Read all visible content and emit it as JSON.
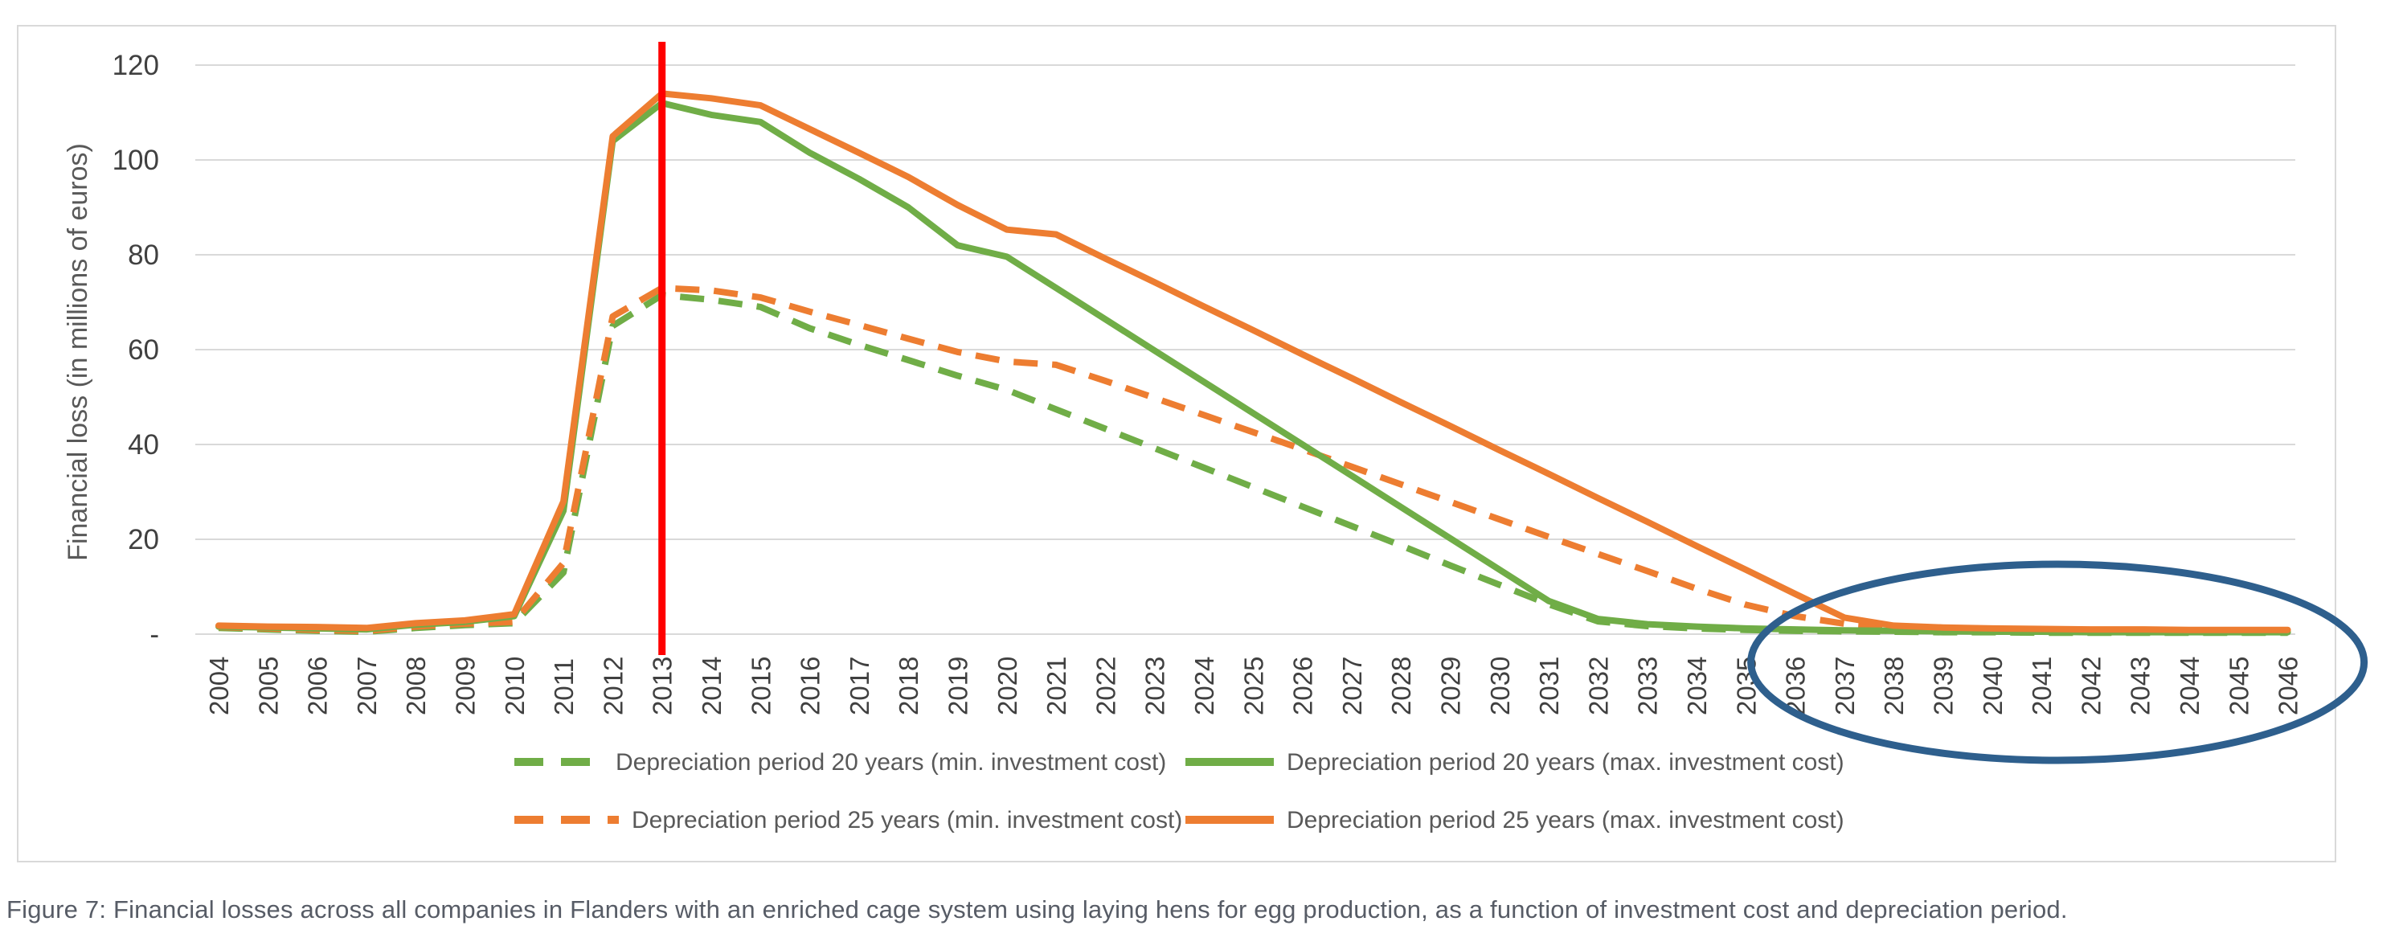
{
  "caption": "Figure 7: Financial losses across all companies in Flanders with an enriched cage system using laying hens for egg production, as a function of investment cost and depreciation period.",
  "chart_data": {
    "type": "line",
    "ylabel": "Financial loss (in millions of euros)",
    "ylim": [
      0,
      120
    ],
    "grid": true,
    "legend_position": "bottom",
    "yticks": {
      "values": [
        0,
        20,
        40,
        60,
        80,
        100,
        120
      ],
      "labels": [
        "-",
        "20",
        "40",
        "60",
        "80",
        "100",
        "120"
      ]
    },
    "x": [
      2004,
      2005,
      2006,
      2007,
      2008,
      2009,
      2010,
      2011,
      2012,
      2013,
      2014,
      2015,
      2016,
      2017,
      2018,
      2019,
      2020,
      2021,
      2022,
      2023,
      2024,
      2025,
      2026,
      2027,
      2028,
      2029,
      2030,
      2031,
      2032,
      2033,
      2034,
      2035,
      2036,
      2037,
      2038,
      2039,
      2040,
      2041,
      2042,
      2043,
      2044,
      2045,
      2046
    ],
    "series": [
      {
        "name": "Depreciation period 20 years (min. investment cost)",
        "color": "#70AD47",
        "dash": true,
        "legend_row": 0,
        "legend_col": 0,
        "values": [
          1.3,
          1.0,
          0.7,
          0.5,
          1.3,
          1.9,
          2.3,
          13,
          65,
          71.5,
          70.5,
          69,
          64.5,
          61,
          57.8,
          54.5,
          51.5,
          47.4,
          43.3,
          39.2,
          35.1,
          31,
          26.9,
          22.8,
          18.7,
          14.5,
          10.4,
          6.3,
          2.7,
          1.7,
          1.2,
          0.9,
          0.7,
          0.6,
          0.5,
          0.4,
          0.4,
          0.3,
          0.3,
          0.3,
          0.3,
          0.3,
          0.3
        ]
      },
      {
        "name": "Depreciation period 25 years (min. investment cost)",
        "color": "#ED7D31",
        "dash": true,
        "legend_row": 1,
        "legend_col": 0,
        "values": [
          1.5,
          1.2,
          0.9,
          0.7,
          1.6,
          2.2,
          2.6,
          15,
          67,
          73,
          72.5,
          71,
          68,
          65.2,
          62.3,
          59.5,
          57.5,
          56.8,
          53.4,
          49.8,
          46.2,
          42.6,
          39,
          35.3,
          31.6,
          27.9,
          24.2,
          20.5,
          16.9,
          13.3,
          9.6,
          6.2,
          3.8,
          2.2,
          1.5,
          1.2,
          1.0,
          0.9,
          0.9,
          0.8,
          0.8,
          0.8,
          0.8
        ]
      },
      {
        "name": "Depreciation period 20 years (max. investment cost)",
        "color": "#70AD47",
        "dash": false,
        "legend_row": 0,
        "legend_col": 1,
        "values": [
          1.6,
          1.4,
          1.2,
          1.0,
          2.0,
          2.6,
          3.8,
          26,
          104,
          112,
          109.5,
          108,
          101.5,
          96,
          90,
          82,
          79.6,
          73,
          66.4,
          59.8,
          53.2,
          46.6,
          40,
          33.4,
          26.8,
          20.2,
          13.6,
          7,
          3.2,
          2.1,
          1.6,
          1.2,
          1.0,
          0.8,
          0.7,
          0.6,
          0.5,
          0.5,
          0.4,
          0.4,
          0.4,
          0.4,
          0.4
        ]
      },
      {
        "name": "Depreciation period 25 years (max. investment cost)",
        "color": "#ED7D31",
        "dash": false,
        "legend_row": 1,
        "legend_col": 1,
        "values": [
          1.8,
          1.6,
          1.5,
          1.3,
          2.3,
          2.9,
          4.2,
          28,
          105,
          114,
          113,
          111.5,
          106.5,
          101.5,
          96.4,
          90.5,
          85.3,
          84.3,
          79.2,
          74.2,
          69.1,
          64.1,
          59,
          54,
          48.9,
          43.9,
          38.8,
          33.8,
          28.7,
          23.7,
          18.6,
          13.6,
          8.5,
          3.5,
          1.8,
          1.4,
          1.2,
          1.1,
          1.0,
          1.0,
          0.9,
          0.9,
          0.9
        ]
      }
    ],
    "annotations": {
      "red_vline": {
        "year": 2013,
        "color": "#FF0000"
      },
      "highlight_ellipse": {
        "year_from": 2036,
        "year_to": 2046,
        "color": "#2E5F8D"
      }
    }
  },
  "colors": {
    "gridline": "#D9D9D9",
    "card_border": "#D9D9D9",
    "tick_label": "#404040",
    "axis_title": "#595959",
    "legend_text": "#595959"
  }
}
